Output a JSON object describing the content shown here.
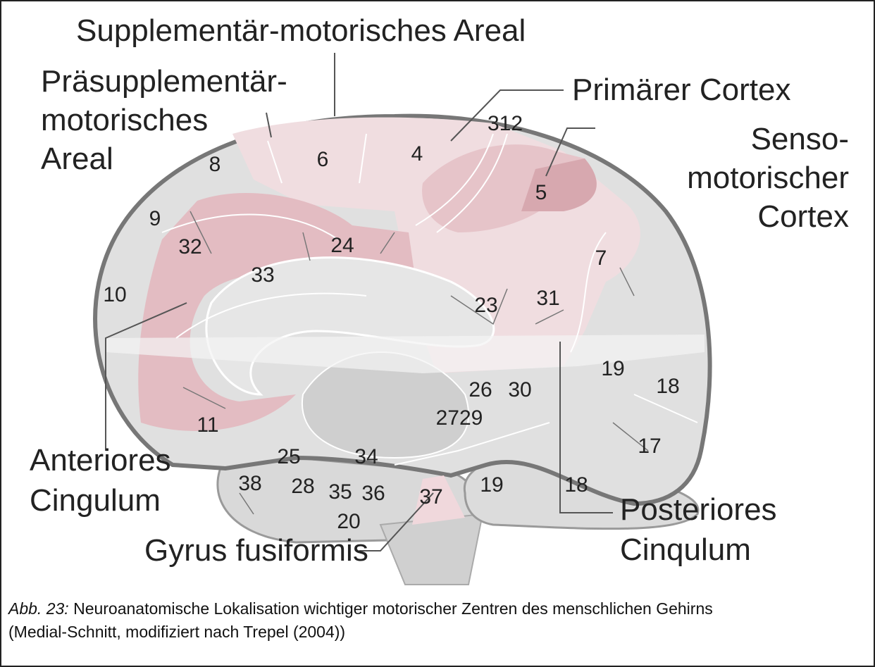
{
  "labels": [
    {
      "lines": [
        "Supplementär-motorisches Areal"
      ]
    },
    {
      "lines": [
        "Präsupplementär-",
        "motorisches",
        "Areal"
      ]
    },
    {
      "lines": [
        "Primärer Cortex"
      ]
    },
    {
      "lines": [
        "Senso-",
        "motorischer",
        "Cortex"
      ]
    },
    {
      "lines": [
        "Anteriores",
        "Cingulum"
      ]
    },
    {
      "lines": [
        "Gyrus fusiformis"
      ]
    },
    {
      "lines": [
        "Posteriores",
        "Cinqulum"
      ]
    }
  ],
  "areas": [
    "8",
    "6",
    "4",
    "312",
    "5",
    "9",
    "32",
    "24",
    "7",
    "33",
    "10",
    "23",
    "31",
    "19",
    "18",
    "26",
    "30",
    "2729",
    "11",
    "17",
    "25",
    "34",
    "28",
    "35",
    "36",
    "38",
    "37",
    "19",
    "18",
    "20"
  ],
  "caption": {
    "prefix": "Abb. 23:",
    "lines": [
      "Neuroanatomische Lokalisation wichtiger motorischer Zentren des menschlichen Gehirns",
      "(Medial-Schnitt, modifiziert nach Trepel (2004))"
    ]
  }
}
